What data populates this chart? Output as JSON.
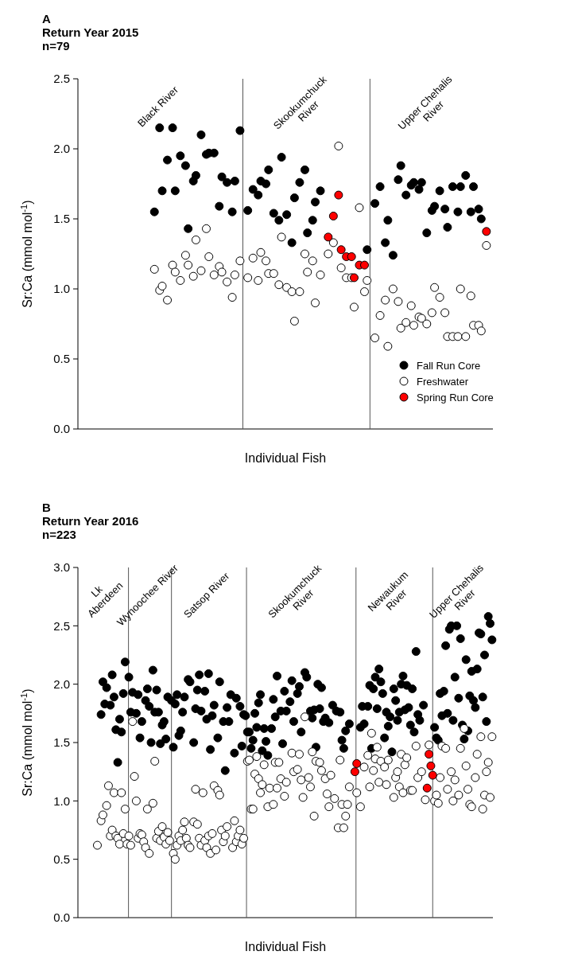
{
  "chart_data": [
    {
      "type": "scatter",
      "title": "A",
      "subtitle": "Return Year 2015\nn=79",
      "xlabel": "Individual Fish",
      "ylabel": "Sr:Ca (mmol mol$^{-1}$)",
      "categories": [
        null,
        null,
        null,
        null,
        null,
        null,
        null,
        null,
        null,
        null,
        null,
        null,
        null,
        null,
        null,
        null,
        null,
        null,
        null,
        null,
        null,
        null,
        null,
        null,
        null,
        null,
        null,
        null,
        null,
        null,
        null,
        null,
        null,
        null,
        null,
        null,
        null,
        null,
        null,
        null,
        null,
        null,
        null,
        null,
        null,
        null,
        null,
        null,
        null,
        null,
        null,
        null,
        null,
        null,
        null,
        null,
        null,
        null,
        null,
        null,
        null,
        null,
        null,
        null,
        null,
        null,
        null,
        null,
        null,
        null,
        null,
        null,
        null,
        null,
        null,
        null,
        null,
        null,
        null,
        null,
        null,
        null,
        null,
        null,
        null,
        null,
        null,
        null,
        null,
        null,
        null,
        null,
        null,
        null,
        null,
        null,
        null,
        null,
        null,
        null,
        null,
        null,
        null,
        null,
        null,
        null,
        null,
        null,
        null,
        null,
        null,
        null,
        null,
        null,
        null,
        null,
        null,
        null,
        null,
        null,
        null,
        null,
        null,
        null,
        null,
        null,
        null,
        null,
        null,
        null,
        null,
        null,
        null,
        null,
        null,
        null,
        null,
        null,
        null,
        null,
        null,
        null,
        null,
        null,
        null,
        null,
        null,
        null,
        null,
        null,
        null,
        null,
        null,
        null,
        null,
        null,
        null,
        null,
        null,
        null
      ],
      "ylim": [
        0,
        2.5
      ],
      "yticks": [
        {
          "value": 0,
          "label": "0.0"
        },
        {
          "value": 0.5,
          "label": "0.5"
        },
        {
          "value": 1,
          "label": "1.0"
        },
        {
          "value": 1.5,
          "label": "1.5"
        },
        {
          "value": 2,
          "label": "2.0"
        },
        {
          "value": 2.5,
          "label": "2.5"
        }
      ],
      "tick_labels": "y",
      "grid": false,
      "legend": "bottom right",
      "marker": "circle",
      "annotations": [
        "Black River",
        "Skookumchuck\nRiver",
        "Upper Chehalis\nRiver"
      ],
      "series": [
        {
          "name": "Fall Run Core",
          "color": "#000000",
          "values": [
            null,
            null,
            null,
            null,
            null,
            null,
            null,
            null,
            null,
            null,
            null,
            null,
            null,
            null,
            null,
            null,
            null,
            null,
            null,
            null,
            null,
            null,
            null,
            null,
            null,
            null,
            null,
            null,
            null,
            1.55,
            null,
            2.15,
            1.7,
            null,
            1.92,
            null,
            2.15,
            1.7,
            null,
            1.95,
            null,
            1.88,
            1.43,
            null,
            1.77,
            1.81,
            null,
            2.1,
            null,
            1.96,
            1.97,
            null,
            1.97,
            null,
            1.59,
            1.8,
            null,
            1.76,
            null,
            1.55,
            1.77,
            null,
            2.13,
            null,
            null,
            1.56,
            null,
            1.71,
            null,
            1.67,
            1.77,
            null,
            1.75,
            1.85,
            null,
            1.54,
            null,
            1.49,
            1.94,
            null,
            1.53,
            null,
            1.33,
            1.65,
            null,
            1.76,
            null,
            1.85,
            1.4,
            null,
            1.49,
            1.62,
            null,
            1.7,
            null,
            null,
            null,
            null,
            null,
            null,
            null,
            null,
            null,
            null,
            null,
            null,
            null,
            null,
            null,
            null,
            null,
            1.28,
            null,
            null,
            1.61,
            null,
            1.73,
            null,
            1.33,
            1.49,
            null,
            1.24,
            null,
            1.78,
            1.88,
            null,
            1.67,
            null,
            1.74,
            1.76,
            null,
            1.71,
            1.76,
            null,
            1.4,
            null,
            1.56,
            1.59,
            null,
            1.7,
            null,
            1.57,
            1.44,
            null,
            1.73,
            null,
            1.55,
            1.73,
            null,
            1.81,
            null,
            1.55,
            1.73,
            null,
            1.57,
            1.5,
            null,
            null,
            null,
            null
          ]
        },
        {
          "name": "Freshwater",
          "color": "#ffffff",
          "values": [
            null,
            null,
            null,
            null,
            null,
            null,
            null,
            null,
            null,
            null,
            null,
            null,
            null,
            null,
            null,
            null,
            null,
            null,
            null,
            null,
            null,
            null,
            null,
            null,
            null,
            null,
            null,
            null,
            null,
            1.14,
            null,
            0.99,
            1.02,
            null,
            0.92,
            null,
            1.17,
            1.12,
            null,
            1.06,
            null,
            1.24,
            1.17,
            null,
            1.09,
            1.35,
            null,
            1.13,
            null,
            1.43,
            1.23,
            null,
            1.1,
            null,
            1.16,
            1.12,
            null,
            1.05,
            null,
            0.94,
            1.1,
            null,
            1.2,
            null,
            null,
            1.08,
            null,
            1.22,
            null,
            1.06,
            1.26,
            null,
            1.2,
            1.11,
            null,
            1.11,
            null,
            1.03,
            1.37,
            null,
            1.01,
            null,
            0.98,
            0.77,
            null,
            0.98,
            null,
            1.25,
            1.12,
            null,
            1.2,
            0.9,
            null,
            1.1,
            null,
            null,
            1.25,
            null,
            1.33,
            null,
            2.02,
            1.15,
            null,
            1.08,
            null,
            1.08,
            0.87,
            null,
            1.58,
            null,
            0.98,
            1.06,
            null,
            null,
            0.65,
            null,
            0.81,
            null,
            0.92,
            0.59,
            null,
            1.0,
            null,
            0.91,
            0.72,
            null,
            0.76,
            null,
            0.88,
            0.74,
            null,
            0.8,
            0.79,
            null,
            0.75,
            null,
            0.83,
            1.01,
            null,
            0.94,
            null,
            0.83,
            0.66,
            null,
            0.66,
            null,
            0.66,
            1.0,
            null,
            0.66,
            null,
            0.95,
            0.74,
            null,
            0.74,
            0.7,
            null,
            1.31,
            null,
            null
          ]
        },
        {
          "name": "Spring Run Core",
          "color": "#ff0000",
          "values": [
            null,
            null,
            null,
            null,
            null,
            null,
            null,
            null,
            null,
            null,
            null,
            null,
            null,
            null,
            null,
            null,
            null,
            null,
            null,
            null,
            null,
            null,
            null,
            null,
            null,
            null,
            null,
            null,
            null,
            null,
            null,
            null,
            null,
            null,
            null,
            null,
            null,
            null,
            null,
            null,
            null,
            null,
            null,
            null,
            null,
            null,
            null,
            null,
            null,
            null,
            null,
            null,
            null,
            null,
            null,
            null,
            null,
            null,
            null,
            null,
            null,
            null,
            null,
            null,
            null,
            null,
            null,
            null,
            null,
            null,
            null,
            null,
            null,
            null,
            null,
            null,
            null,
            null,
            null,
            null,
            null,
            null,
            null,
            null,
            null,
            null,
            null,
            null,
            null,
            null,
            null,
            null,
            null,
            null,
            null,
            null,
            1.37,
            null,
            1.52,
            null,
            1.67,
            1.28,
            null,
            1.23,
            null,
            1.23,
            1.08,
            null,
            1.17,
            null,
            1.17,
            null,
            null,
            null,
            null,
            null,
            null,
            null,
            null,
            null,
            null,
            null,
            null,
            null,
            null,
            null,
            null,
            null,
            null,
            null,
            null,
            null,
            null,
            null,
            null,
            null,
            null,
            null,
            null,
            null,
            null,
            null,
            null,
            null,
            null,
            null,
            null,
            null,
            null,
            null,
            null,
            null,
            null,
            null,
            null,
            null,
            null,
            1.41,
            null,
            null
          ]
        }
      ]
    },
    {
      "type": "scatter",
      "title": "B",
      "subtitle": "Return Year 2016\nn=223",
      "xlabel": "Individual Fish",
      "ylabel": "Sr:Ca (mmol mol$^{-1}$)",
      "categories": [
        null,
        null,
        null,
        null,
        null,
        null,
        null,
        null,
        null,
        null,
        null,
        null,
        null,
        null,
        null,
        null,
        null,
        null,
        null,
        null,
        null,
        null,
        null,
        null,
        null,
        null,
        null,
        null,
        null,
        null,
        null,
        null,
        null,
        null,
        null,
        null,
        null,
        null,
        null,
        null,
        null,
        null,
        null,
        null,
        null,
        null,
        null,
        null,
        null,
        null,
        null,
        null,
        null,
        null,
        null,
        null,
        null,
        null,
        null,
        null,
        null,
        null,
        null,
        null,
        null,
        null,
        null,
        null,
        null,
        null,
        null,
        null,
        null,
        null,
        null,
        null,
        null,
        null,
        null,
        null,
        null,
        null,
        null,
        null,
        null,
        null,
        null,
        null,
        null,
        null,
        null,
        null,
        null,
        null,
        null,
        null,
        null,
        null,
        null,
        null,
        null,
        null,
        null,
        null,
        null,
        null,
        null,
        null,
        null,
        null,
        null,
        null,
        null,
        null,
        null,
        null,
        null,
        null,
        null,
        null,
        null,
        null,
        null,
        null,
        null,
        null,
        null,
        null,
        null,
        null,
        null,
        null,
        null,
        null,
        null,
        null,
        null,
        null,
        null,
        null,
        null,
        null,
        null,
        null,
        null,
        null,
        null,
        null,
        null,
        null,
        null,
        null,
        null,
        null,
        null,
        null,
        null,
        null,
        null,
        null,
        null,
        null,
        null,
        null,
        null,
        null,
        null,
        null,
        null,
        null,
        null,
        null,
        null,
        null,
        null,
        null,
        null,
        null,
        null,
        null,
        null,
        null,
        null,
        null,
        null,
        null,
        null,
        null,
        null,
        null,
        null,
        null,
        null,
        null,
        null,
        null,
        null,
        null,
        null,
        null,
        null,
        null,
        null,
        null,
        null,
        null,
        null,
        null,
        null,
        null,
        null,
        null,
        null,
        null,
        null,
        null,
        null,
        null,
        null,
        null,
        null,
        null,
        null,
        null
      ],
      "ylim": [
        0,
        3
      ],
      "yticks": [
        {
          "value": 0,
          "label": "0.0"
        },
        {
          "value": 0.5,
          "label": "0.5"
        },
        {
          "value": 1,
          "label": "1.0"
        },
        {
          "value": 1.5,
          "label": "1.5"
        },
        {
          "value": 2,
          "label": "2.0"
        },
        {
          "value": 2.5,
          "label": "2.5"
        },
        {
          "value": 3,
          "label": "3.0"
        }
      ],
      "tick_labels": "y",
      "grid": false,
      "marker": "circle",
      "annotations": [
        "Lk\nAberdeen",
        "Wynoochee River",
        "Satsop River",
        "Skookumchuck\nRiver",
        "Newaukum\nRiver",
        "Upper Chehalis\nRiver"
      ],
      "series": [
        {
          "color": "#000000",
          "values": [
            null,
            null,
            null,
            null,
            null,
            null,
            null,
            null,
            null,
            null,
            null,
            null,
            1.74,
            2.02,
            1.83,
            1.97,
            null,
            1.82,
            2.08,
            1.89,
            1.61,
            1.33,
            1.7,
            1.59,
            1.92,
            2.19,
            null,
            2.06,
            1.76,
            1.93,
            null,
            1.75,
            1.91,
            1.54,
            1.68,
            null,
            1.86,
            1.96,
            1.81,
            1.5,
            2.12,
            1.76,
            1.95,
            1.76,
            1.49,
            1.65,
            1.68,
            1.53,
            1.89,
            null,
            1.86,
            1.46,
            1.83,
            1.91,
            1.56,
            1.6,
            1.76,
            1.89,
            null,
            2.04,
            2.02,
            null,
            1.5,
            1.79,
            1.95,
            2.08,
            1.77,
            null,
            1.94,
            1.7,
            2.09,
            1.44,
            1.73,
            1.82,
            null,
            1.54,
            2.02,
            null,
            1.68,
            1.26,
            1.8,
            1.68,
            1.91,
            null,
            1.41,
            1.88,
            null,
            1.81,
            1.47,
            1.74,
            1.73,
            1.59,
            1.59,
            1.45,
            1.52,
            1.75,
            1.63,
            1.84,
            1.91,
            1.43,
            1.62,
            1.51,
            1.39,
            null,
            1.62,
            1.87,
            1.72,
            2.07,
            null,
            1.77,
            1.49,
            1.94,
            1.77,
            null,
            1.85,
            2.03,
            1.68,
            null,
            1.92,
            1.98,
            1.59,
            null,
            2.1,
            2.06,
            null,
            1.77,
            1.71,
            1.78,
            1.46,
            2.0,
            1.79,
            1.97,
            1.68,
            1.71,
            null,
            1.67,
            null,
            1.82,
            null,
            1.77,
            null,
            1.76,
            1.52,
            1.45,
            1.6,
            null,
            1.66,
            null,
            null,
            null,
            null,
            null,
            1.63,
            1.81,
            1.66,
            null,
            1.81,
            1.99,
            1.45,
            1.96,
            2.06,
            1.79,
            2.13,
            2.02,
            1.92,
            1.54,
            1.76,
            1.64,
            1.72,
            1.42,
            1.96,
            1.86,
            1.69,
            1.76,
            2.0,
            2.07,
            1.78,
            1.99,
            1.8,
            1.65,
            1.96,
            1.59,
            2.28,
            1.74,
            1.69,
            null,
            1.82,
            null,
            null,
            null,
            null,
            null,
            1.63,
            1.54,
            1.52,
            1.92,
            1.73,
            1.94,
            2.33,
            1.75,
            2.47,
            2.5,
            1.69,
            2.06,
            2.5,
            1.88,
            2.39,
            1.65,
            1.53,
            2.21,
            1.6,
            1.9,
            2.11,
            1.86,
            1.8,
            2.13,
            2.44,
            2.43,
            1.89,
            2.25,
            1.68,
            2.58,
            2.52,
            2.38
          ]
        },
        {
          "color": "#ffffff",
          "values": [
            null,
            null,
            null,
            null,
            null,
            null,
            null,
            null,
            null,
            null,
            0.62,
            null,
            0.83,
            0.88,
            null,
            0.96,
            1.13,
            0.7,
            0.75,
            1.07,
            0.7,
            0.68,
            0.63,
            1.07,
            0.72,
            0.93,
            0.63,
            0.7,
            0.62,
            1.68,
            1.21,
            1.0,
            0.68,
            0.72,
            0.71,
            0.65,
            0.6,
            0.93,
            0.55,
            null,
            0.98,
            1.34,
            0.68,
            0.74,
            0.66,
            0.78,
            0.69,
            0.63,
            0.73,
            0.66,
            null,
            0.55,
            0.5,
            0.62,
            0.7,
            0.66,
            0.75,
            0.82,
            0.68,
            0.62,
            0.6,
            null,
            0.82,
            1.1,
            0.8,
            0.68,
            0.62,
            1.07,
            0.66,
            0.6,
            0.7,
            0.55,
            0.72,
            1.13,
            0.58,
            1.09,
            1.05,
            0.75,
            0.65,
            0.7,
            0.78,
            null,
            null,
            0.6,
            0.83,
            0.65,
            0.7,
            0.75,
            0.63,
            0.68,
            null,
            1.34,
            1.35,
            0.93,
            0.93,
            1.23,
            1.38,
            1.19,
            1.07,
            1.14,
            1.31,
            null,
            0.95,
            1.11,
            null,
            0.97,
            1.33,
            1.11,
            1.33,
            1.19,
            null,
            1.04,
            1.16,
            null,
            null,
            1.41,
            1.25,
            null,
            1.27,
            1.4,
            1.18,
            1.03,
            1.72,
            null,
            1.2,
            1.12,
            1.42,
            0.87,
            1.34,
            null,
            1.33,
            1.26,
            null,
            1.19,
            1.06,
            0.95,
            1.22,
            null,
            1.02,
            null,
            0.77,
            1.35,
            0.97,
            0.77,
            0.87,
            0.97,
            1.12,
            null,
            null,
            null,
            1.07,
            null,
            0.95,
            null,
            1.29,
            null,
            1.39,
            1.12,
            1.58,
            1.26,
            1.36,
            1.46,
            1.16,
            1.34,
            null,
            1.29,
            1.14,
            1.35,
            null,
            null,
            1.03,
            1.2,
            1.25,
            1.12,
            1.4,
            1.07,
            1.31,
            1.37,
            null,
            1.09,
            1.09,
            null,
            1.47,
            1.2,
            null,
            1.25,
            null,
            1.01,
            null,
            1.48,
            null,
            null,
            1.0,
            1.05,
            0.98,
            1.2,
            1.47,
            null,
            1.45,
            1.1,
            null,
            1.25,
            1.0,
            1.18,
            null,
            1.05,
            1.45,
            null,
            1.62,
            1.3,
            1.1,
            0.97,
            0.95,
            null,
            1.2,
            1.4,
            null,
            1.55,
            0.93,
            1.05,
            1.25,
            1.33,
            1.03,
            1.55
          ]
        },
        {
          "color": "#ff0000",
          "values": [
            null,
            null,
            null,
            null,
            null,
            null,
            null,
            null,
            null,
            null,
            null,
            null,
            null,
            null,
            null,
            null,
            null,
            null,
            null,
            null,
            null,
            null,
            null,
            null,
            null,
            null,
            null,
            null,
            null,
            null,
            null,
            null,
            null,
            null,
            null,
            null,
            null,
            null,
            null,
            null,
            null,
            null,
            null,
            null,
            null,
            null,
            null,
            null,
            null,
            null,
            null,
            null,
            null,
            null,
            null,
            null,
            null,
            null,
            null,
            null,
            null,
            null,
            null,
            null,
            null,
            null,
            null,
            null,
            null,
            null,
            null,
            null,
            null,
            null,
            null,
            null,
            null,
            null,
            null,
            null,
            null,
            null,
            null,
            null,
            null,
            null,
            null,
            null,
            null,
            null,
            null,
            null,
            null,
            null,
            null,
            null,
            null,
            null,
            null,
            null,
            null,
            null,
            null,
            null,
            null,
            null,
            null,
            null,
            null,
            null,
            null,
            null,
            null,
            null,
            null,
            null,
            null,
            null,
            null,
            null,
            null,
            null,
            null,
            null,
            null,
            null,
            null,
            null,
            null,
            null,
            null,
            null,
            null,
            null,
            null,
            null,
            null,
            null,
            null,
            null,
            null,
            null,
            null,
            null,
            null,
            null,
            null,
            null,
            null,
            1.25,
            1.32,
            null,
            null,
            null,
            null,
            null,
            null,
            null,
            null,
            null,
            null,
            null,
            null,
            null,
            null,
            null,
            null,
            null,
            null,
            null,
            null,
            null,
            null,
            null,
            null,
            null,
            null,
            null,
            null,
            null,
            null,
            null,
            null,
            null,
            null,
            null,
            null,
            null,
            1.11,
            1.4,
            1.3,
            1.22,
            null,
            null,
            null,
            null,
            null,
            null,
            null,
            null,
            null,
            null,
            null,
            null,
            null,
            null,
            null,
            null,
            null,
            null,
            null,
            null,
            null,
            null,
            null,
            null,
            null,
            null,
            null,
            null,
            null,
            null,
            null,
            null
          ]
        }
      ]
    }
  ]
}
